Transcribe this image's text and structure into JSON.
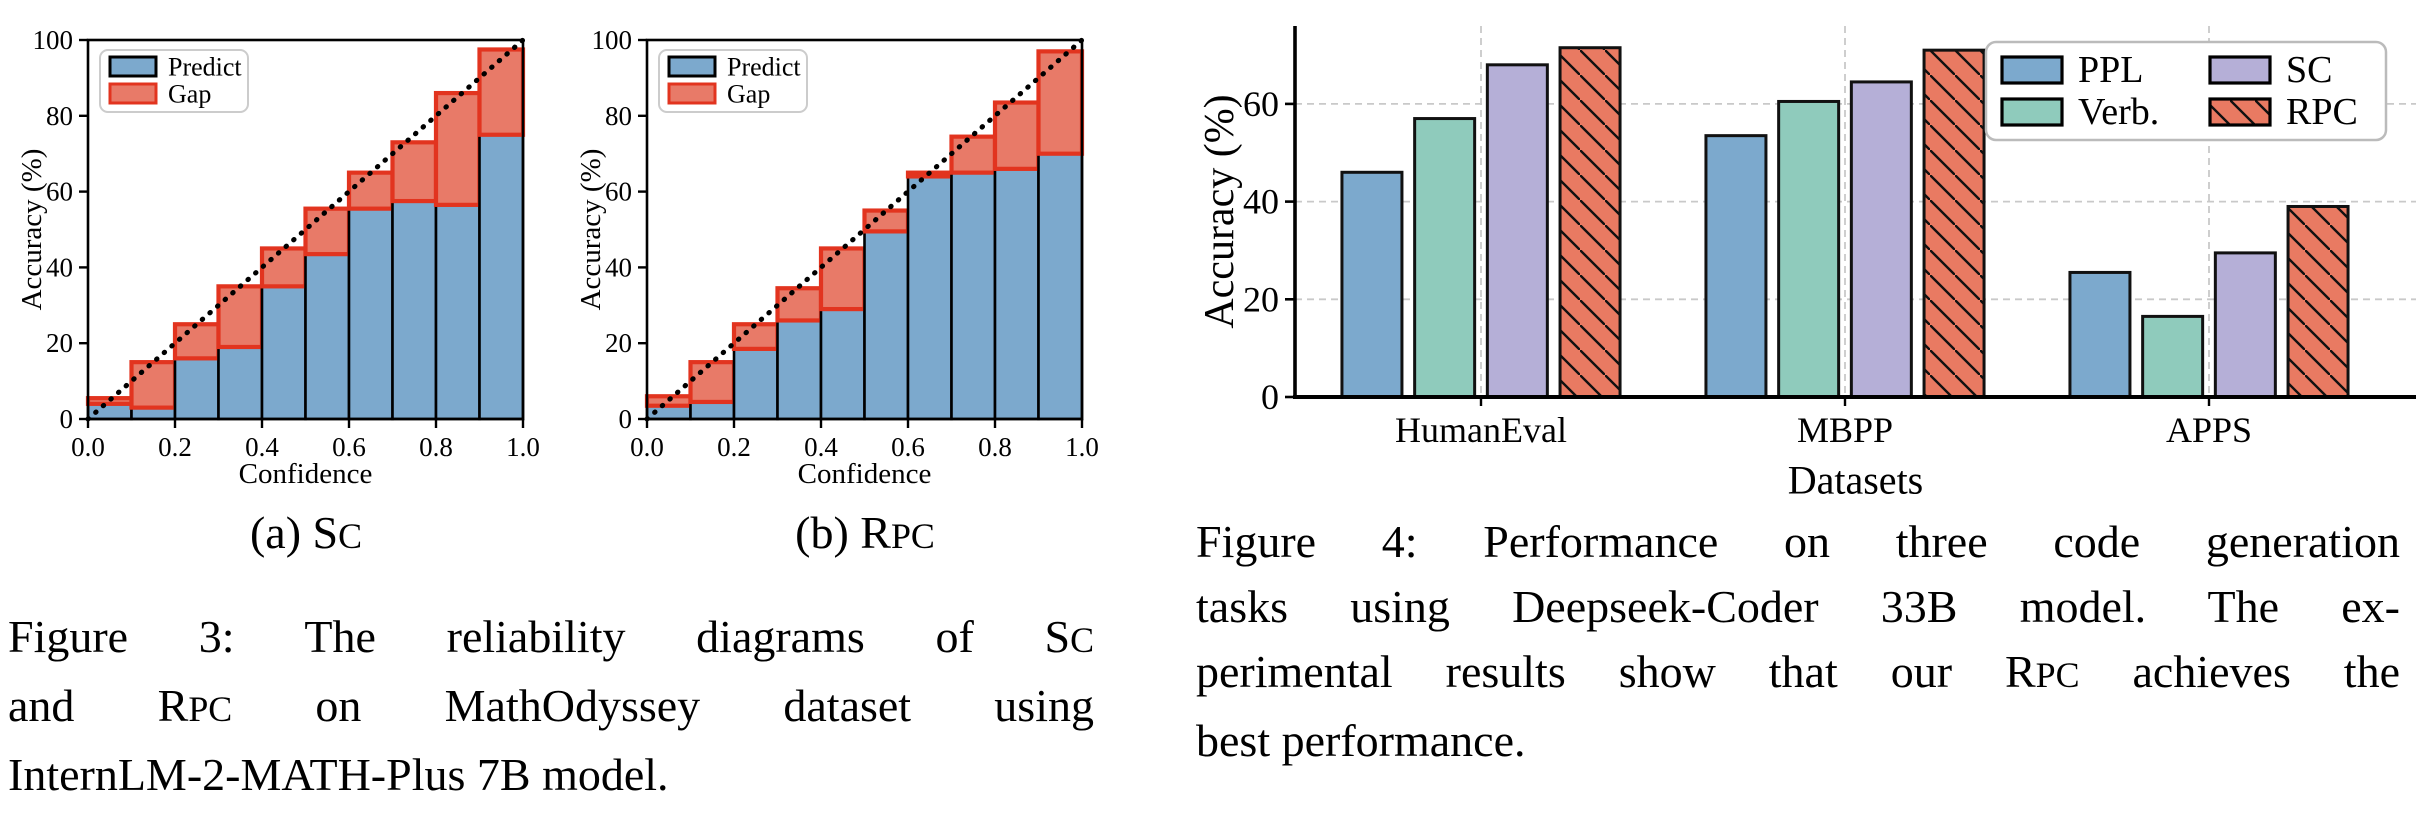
{
  "page": {
    "background": "#ffffff"
  },
  "colors": {
    "predict_blue": "#7ca9cd",
    "gap_fill": "#e87a68",
    "gap_edge": "#e2341f",
    "ppl_blue": "#7ca9cd",
    "verb_teal": "#8fcbbc",
    "sc_purple": "#b5afd7",
    "rpc_salmon": "#e97a62",
    "hatch_line": "#111111",
    "grid_gray": "#c9c9c9",
    "legend_border": "#bbbbbb",
    "axis_black": "#000000"
  },
  "chart_data": [
    {
      "id": "reliability_sc",
      "type": "bar",
      "subtype": "reliability_diagram",
      "panel": "(a) SC",
      "xlabel": "Confidence",
      "ylabel": "Accuracy (%)",
      "xlim": [
        0.0,
        1.0
      ],
      "ylim": [
        0,
        100
      ],
      "xtick_labels": [
        "0.0",
        "0.2",
        "0.4",
        "0.6",
        "0.8",
        "1.0"
      ],
      "xticks": [
        0.0,
        0.2,
        0.4,
        0.6,
        0.8,
        1.0
      ],
      "yticks": [
        0,
        20,
        40,
        60,
        80,
        100
      ],
      "bin_edges": [
        0.0,
        0.1,
        0.2,
        0.3,
        0.4,
        0.5,
        0.6,
        0.7,
        0.8,
        0.9,
        1.0
      ],
      "legend_position": "upper left",
      "diagonal_line": true,
      "series": [
        {
          "name": "Predict",
          "values": [
            4,
            3,
            16,
            19,
            35,
            43.5,
            55.5,
            57.5,
            56.5,
            75
          ]
        },
        {
          "name": "Gap",
          "top": [
            5.5,
            15,
            25,
            35,
            45,
            55.5,
            65,
            73,
            86,
            97.5
          ]
        }
      ]
    },
    {
      "id": "reliability_rpc",
      "type": "bar",
      "subtype": "reliability_diagram",
      "panel": "(b) RPC",
      "xlabel": "Confidence",
      "ylabel": "Accuracy (%)",
      "xlim": [
        0.0,
        1.0
      ],
      "ylim": [
        0,
        100
      ],
      "xtick_labels": [
        "0.0",
        "0.2",
        "0.4",
        "0.6",
        "0.8",
        "1.0"
      ],
      "xticks": [
        0.0,
        0.2,
        0.4,
        0.6,
        0.8,
        1.0
      ],
      "yticks": [
        0,
        20,
        40,
        60,
        80,
        100
      ],
      "bin_edges": [
        0.0,
        0.1,
        0.2,
        0.3,
        0.4,
        0.5,
        0.6,
        0.7,
        0.8,
        0.9,
        1.0
      ],
      "legend_position": "upper left",
      "diagonal_line": true,
      "series": [
        {
          "name": "Predict",
          "values": [
            3.5,
            4.5,
            18.5,
            26,
            29,
            49.5,
            64,
            65,
            66,
            70
          ]
        },
        {
          "name": "Gap",
          "top": [
            6,
            15,
            25,
            34.5,
            45,
            55,
            65,
            74.5,
            83.5,
            97
          ]
        }
      ]
    },
    {
      "id": "code_generation_performance",
      "type": "bar",
      "title": "",
      "xlabel": "Datasets",
      "ylabel": "Accuracy (%)",
      "ylim": [
        0,
        76
      ],
      "yticks": [
        0,
        20,
        40,
        60
      ],
      "grid": "dashed",
      "legend_position": "upper right",
      "categories": [
        "HumanEval",
        "MBPP",
        "APPS"
      ],
      "series": [
        {
          "name": "PPL",
          "colorKey": "ppl_blue",
          "hatch": false,
          "values": [
            46,
            53.5,
            25.5
          ]
        },
        {
          "name": "Verb.",
          "colorKey": "verb_teal",
          "hatch": false,
          "values": [
            57,
            60.5,
            16.5
          ]
        },
        {
          "name": "SC",
          "colorKey": "sc_purple",
          "hatch": false,
          "values": [
            68,
            64.5,
            29.5
          ]
        },
        {
          "name": "RPC",
          "colorKey": "rpc_salmon",
          "hatch": true,
          "values": [
            71.5,
            71,
            39
          ]
        }
      ]
    }
  ],
  "figure3": {
    "panel_a_runs": [
      {
        "t": "(a) S"
      },
      {
        "t": "C",
        "sc": true
      }
    ],
    "panel_b_runs": [
      {
        "t": "(b) R"
      },
      {
        "t": "PC",
        "sc": true
      }
    ],
    "caption_lines": [
      {
        "justify": true,
        "runs": [
          {
            "t": "Figure 3: The reliability diagrams of S"
          },
          {
            "t": "C",
            "sc": true
          }
        ]
      },
      {
        "justify": true,
        "runs": [
          {
            "t": "and R"
          },
          {
            "t": "PC",
            "sc": true
          },
          {
            "t": " on MathOdyssey dataset using"
          }
        ]
      },
      {
        "justify": false,
        "runs": [
          {
            "t": "InternLM-2-MATH-Plus 7B model."
          }
        ]
      }
    ]
  },
  "figure4": {
    "caption_lines": [
      {
        "justify": true,
        "runs": [
          {
            "t": "Figure 4: Performance on three code generation"
          }
        ]
      },
      {
        "justify": true,
        "runs": [
          {
            "t": "tasks using Deepseek-Coder 33B model. The ex-"
          }
        ]
      },
      {
        "justify": true,
        "runs": [
          {
            "t": "perimental results show that our R"
          },
          {
            "t": "PC",
            "sc": true
          },
          {
            "t": " achieves the"
          }
        ]
      },
      {
        "justify": false,
        "runs": [
          {
            "t": "best performance."
          }
        ]
      }
    ]
  }
}
